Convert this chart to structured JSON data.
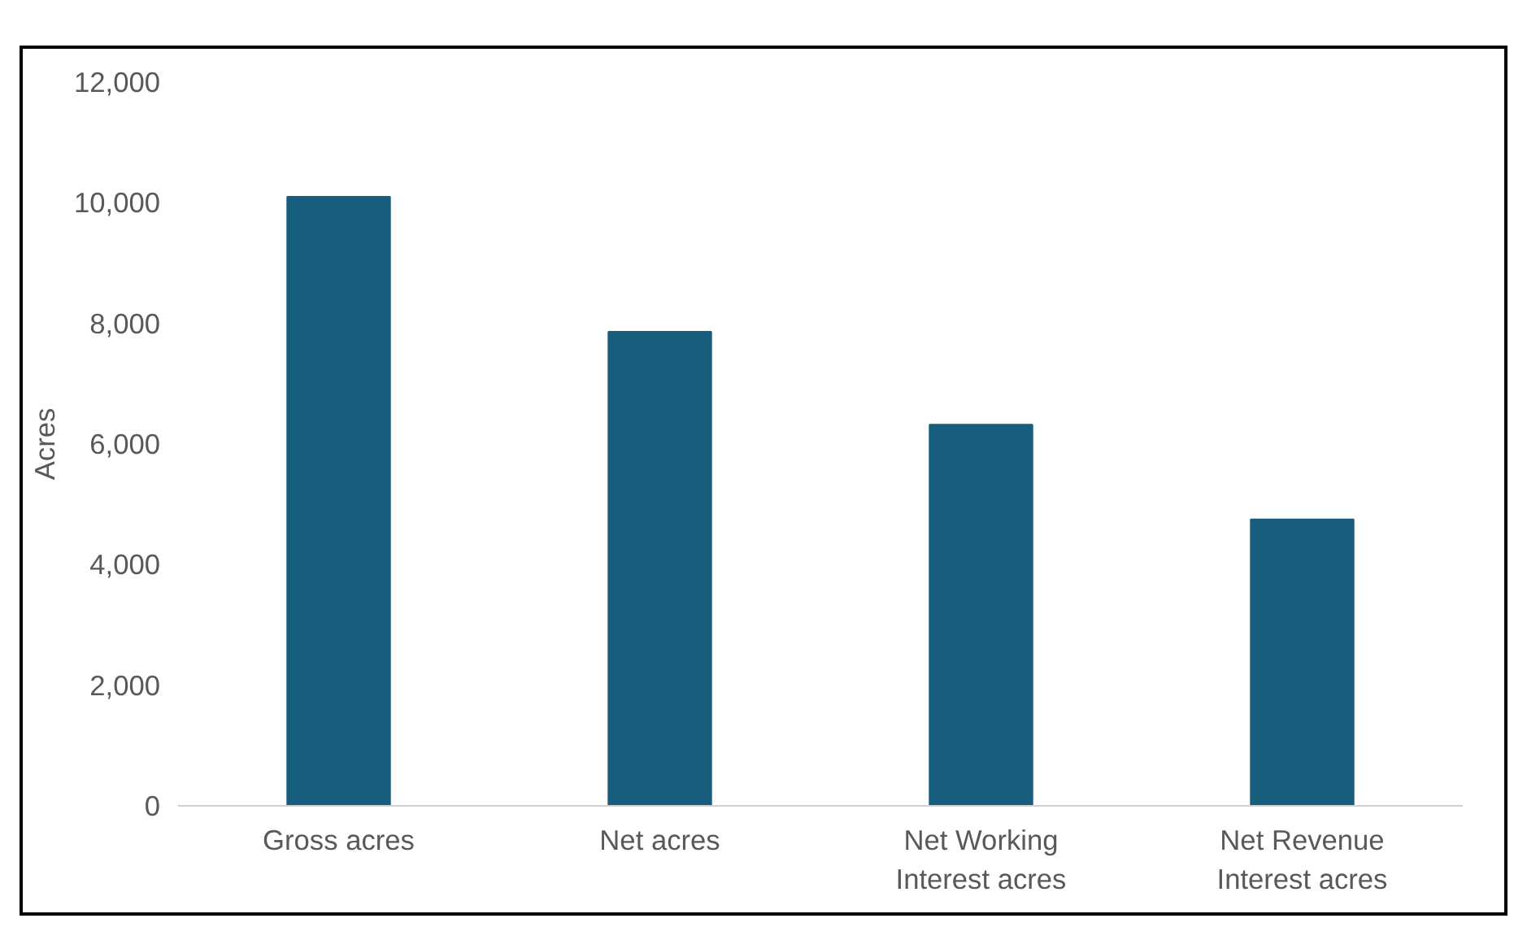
{
  "chart_data": {
    "type": "bar",
    "ylabel": "Acres",
    "categories": [
      "Gross acres",
      "Net acres",
      "Net Working\nInterest acres",
      "Net Revenue\nInterest acres"
    ],
    "values": [
      10100,
      7860,
      6320,
      4750
    ],
    "color": "#175e7e",
    "ylim": [
      0,
      12000
    ],
    "yticks": [
      {
        "value": 0,
        "label": "0"
      },
      {
        "value": 2000,
        "label": "2,000"
      },
      {
        "value": 4000,
        "label": "4,000"
      },
      {
        "value": 6000,
        "label": "6,000"
      },
      {
        "value": 8000,
        "label": "8,000"
      },
      {
        "value": 10000,
        "label": "10,000"
      },
      {
        "value": 12000,
        "label": "12,000"
      }
    ],
    "grid": false
  }
}
